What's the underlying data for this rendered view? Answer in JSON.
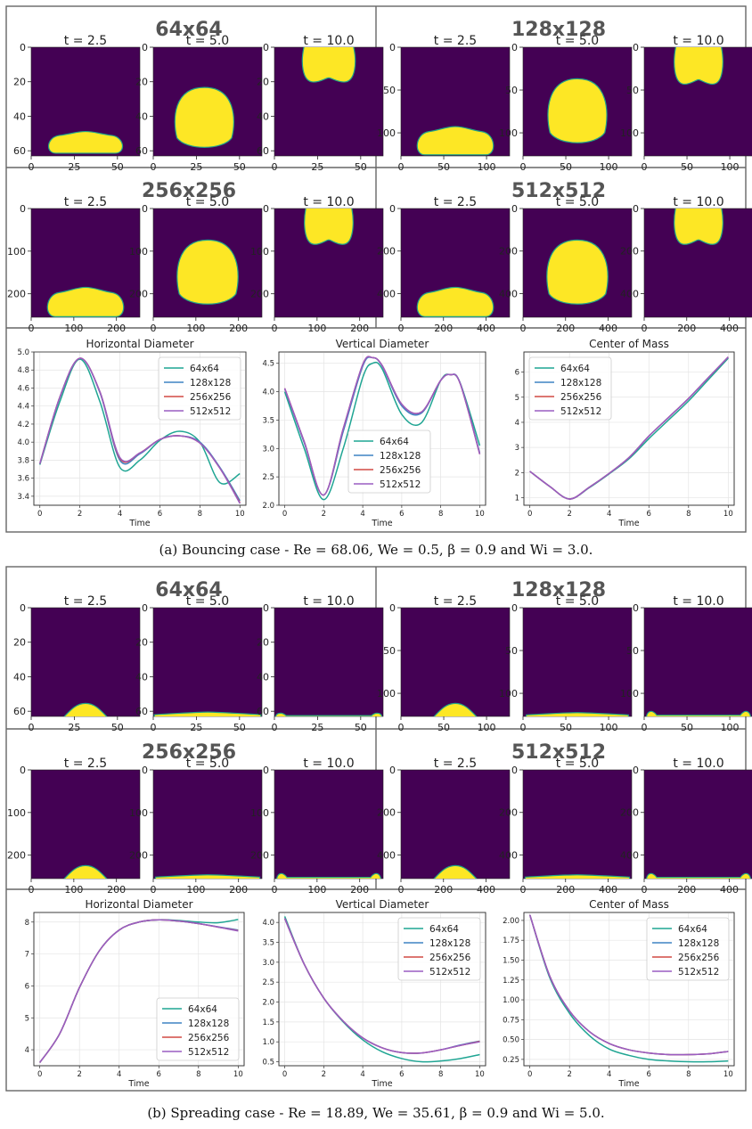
{
  "figure_a": {
    "caption": "(a) Bouncing case - Re = 68.06, We = 0.5, β = 0.9 and Wi = 3.0.",
    "panels": [
      {
        "title": "64x64",
        "max": 63,
        "yticks": [
          0,
          20,
          40,
          60
        ],
        "xticks": [
          0,
          25,
          50
        ],
        "frames": [
          {
            "t_label": "t = 2.5",
            "shape": "puddle",
            "cx": 0.5,
            "cy": 0.875,
            "w": 0.68,
            "h": 0.2
          },
          {
            "t_label": "t = 5.0",
            "shape": "blob",
            "cx": 0.47,
            "cy": 0.66,
            "w": 0.56,
            "h": 0.58
          },
          {
            "t_label": "t = 10.0",
            "shape": "cap",
            "cx": 0.5,
            "cy": 0.16,
            "w": 0.5,
            "h": 0.32
          }
        ]
      },
      {
        "title": "128x128",
        "max": 127,
        "yticks": [
          0,
          50,
          100
        ],
        "xticks": [
          0,
          50,
          100
        ],
        "frames": [
          {
            "t_label": "t = 2.5",
            "shape": "puddle",
            "cx": 0.5,
            "cy": 0.86,
            "w": 0.7,
            "h": 0.26
          },
          {
            "t_label": "t = 5.0",
            "shape": "blob",
            "cx": 0.5,
            "cy": 0.6,
            "w": 0.56,
            "h": 0.62
          },
          {
            "t_label": "t = 10.0",
            "shape": "cap",
            "cx": 0.5,
            "cy": 0.17,
            "w": 0.46,
            "h": 0.34
          }
        ]
      },
      {
        "title": "256x256",
        "max": 255,
        "yticks": [
          0,
          100,
          200
        ],
        "xticks": [
          0,
          100,
          200
        ],
        "frames": [
          {
            "t_label": "t = 2.5",
            "shape": "puddle",
            "cx": 0.5,
            "cy": 0.86,
            "w": 0.7,
            "h": 0.27
          },
          {
            "t_label": "t = 5.0",
            "shape": "blob",
            "cx": 0.5,
            "cy": 0.6,
            "w": 0.58,
            "h": 0.62
          },
          {
            "t_label": "t = 10.0",
            "shape": "cap",
            "cx": 0.5,
            "cy": 0.16,
            "w": 0.46,
            "h": 0.34
          }
        ]
      },
      {
        "title": "512x512",
        "max": 511,
        "yticks": [
          0,
          200,
          400
        ],
        "xticks": [
          0,
          200,
          400
        ],
        "frames": [
          {
            "t_label": "t = 2.5",
            "shape": "puddle",
            "cx": 0.5,
            "cy": 0.86,
            "w": 0.7,
            "h": 0.27
          },
          {
            "t_label": "t = 5.0",
            "shape": "blob",
            "cx": 0.5,
            "cy": 0.6,
            "w": 0.58,
            "h": 0.62
          },
          {
            "t_label": "t = 10.0",
            "shape": "cap",
            "cx": 0.5,
            "cy": 0.16,
            "w": 0.46,
            "h": 0.34
          }
        ]
      }
    ]
  },
  "figure_b": {
    "caption": "(b) Spreading case - Re = 18.89, We = 35.61, β = 0.9 and Wi = 5.0.",
    "panels": [
      {
        "title": "64x64",
        "max": 63,
        "yticks": [
          0,
          20,
          40,
          60
        ],
        "xticks": [
          0,
          25,
          50
        ],
        "frames": [
          {
            "t_label": "t = 2.5",
            "shape": "mound",
            "cx": 0.5,
            "cy": 1.0,
            "w": 0.84,
            "h": 0.24
          },
          {
            "t_label": "t = 5.0",
            "shape": "film",
            "cx": 0.5,
            "cy": 1.0,
            "w": 0.98,
            "h": 0.08
          },
          {
            "t_label": "t = 10.0",
            "shape": "film2",
            "cx": 0.5,
            "cy": 1.0,
            "w": 0.98,
            "h": 0.07
          }
        ]
      },
      {
        "title": "128x128",
        "max": 127,
        "yticks": [
          0,
          50,
          100
        ],
        "xticks": [
          0,
          50,
          100
        ],
        "frames": [
          {
            "t_label": "t = 2.5",
            "shape": "mound",
            "cx": 0.5,
            "cy": 1.0,
            "w": 0.84,
            "h": 0.24
          },
          {
            "t_label": "t = 5.0",
            "shape": "film",
            "cx": 0.5,
            "cy": 1.0,
            "w": 0.94,
            "h": 0.07
          },
          {
            "t_label": "t = 10.0",
            "shape": "film2",
            "cx": 0.5,
            "cy": 1.0,
            "w": 0.96,
            "h": 0.11
          }
        ]
      },
      {
        "title": "256x256",
        "max": 255,
        "yticks": [
          0,
          100,
          200
        ],
        "xticks": [
          0,
          100,
          200
        ],
        "frames": [
          {
            "t_label": "t = 2.5",
            "shape": "mound",
            "cx": 0.5,
            "cy": 1.0,
            "w": 0.84,
            "h": 0.24
          },
          {
            "t_label": "t = 5.0",
            "shape": "film",
            "cx": 0.5,
            "cy": 1.0,
            "w": 0.96,
            "h": 0.07
          },
          {
            "t_label": "t = 10.0",
            "shape": "film2",
            "cx": 0.5,
            "cy": 1.0,
            "w": 0.96,
            "h": 0.11
          }
        ]
      },
      {
        "title": "512x512",
        "max": 511,
        "yticks": [
          0,
          200,
          400
        ],
        "xticks": [
          0,
          200,
          400
        ],
        "frames": [
          {
            "t_label": "t = 2.5",
            "shape": "mound",
            "cx": 0.5,
            "cy": 1.0,
            "w": 0.84,
            "h": 0.24
          },
          {
            "t_label": "t = 5.0",
            "shape": "film",
            "cx": 0.5,
            "cy": 1.0,
            "w": 0.96,
            "h": 0.07
          },
          {
            "t_label": "t = 10.0",
            "shape": "film2",
            "cx": 0.5,
            "cy": 1.0,
            "w": 0.96,
            "h": 0.11
          }
        ]
      }
    ]
  },
  "colors": {
    "background": "#440154",
    "droplet": "#fde725",
    "interface": "#21a387",
    "s64": "#1fa593",
    "s128": "#3e84c4",
    "s256": "#d24a43",
    "s512": "#9a5dc2"
  },
  "chart_data": [
    {
      "type": "line",
      "title": "Horizontal Diameter",
      "xlabel": "Time",
      "ylabel": "",
      "xlim": [
        -0.3,
        10.3
      ],
      "ylim": [
        3.3,
        5.0
      ],
      "xticks": [
        0,
        2,
        4,
        6,
        8,
        10
      ],
      "yticks": [
        3.4,
        3.6,
        3.8,
        4.0,
        4.2,
        4.4,
        4.6,
        4.8,
        5.0
      ],
      "tick_format": 1,
      "legend": "top-right",
      "grid": true,
      "x": [
        0,
        1,
        2,
        3,
        4,
        5,
        6,
        7,
        8,
        9,
        10
      ],
      "series": [
        {
          "name": "64x64",
          "values": [
            3.75,
            4.45,
            4.92,
            4.45,
            3.72,
            3.8,
            4.02,
            4.12,
            4.0,
            3.55,
            3.65
          ]
        },
        {
          "name": "128x128",
          "values": [
            3.76,
            4.5,
            4.93,
            4.55,
            3.8,
            3.87,
            4.03,
            4.07,
            4.0,
            3.72,
            3.35
          ]
        },
        {
          "name": "256x256",
          "values": [
            3.76,
            4.5,
            4.93,
            4.56,
            3.82,
            3.88,
            4.03,
            4.07,
            3.99,
            3.71,
            3.33
          ]
        },
        {
          "name": "512x512",
          "values": [
            3.76,
            4.5,
            4.93,
            4.56,
            3.83,
            3.88,
            4.03,
            4.07,
            3.99,
            3.71,
            3.32
          ]
        }
      ]
    },
    {
      "type": "line",
      "title": "Vertical Diameter",
      "xlabel": "Time",
      "ylabel": "",
      "xlim": [
        -0.3,
        10.3
      ],
      "ylim": [
        2.0,
        4.7
      ],
      "xticks": [
        0,
        2,
        4,
        6,
        8,
        10
      ],
      "yticks": [
        2.0,
        2.5,
        3.0,
        3.5,
        4.0,
        4.5
      ],
      "tick_format": 1,
      "legend": "bottom-center",
      "grid": true,
      "x": [
        0,
        1,
        2,
        3,
        4,
        4.5,
        5,
        6,
        7,
        8,
        8.5,
        9,
        10
      ],
      "series": [
        {
          "name": "64x64",
          "values": [
            4.0,
            3.0,
            2.1,
            3.0,
            4.25,
            4.5,
            4.4,
            3.6,
            3.45,
            4.2,
            4.3,
            4.15,
            3.05
          ]
        },
        {
          "name": "128x128",
          "values": [
            4.05,
            3.1,
            2.18,
            3.3,
            4.45,
            4.6,
            4.45,
            3.75,
            3.62,
            4.2,
            4.3,
            4.15,
            2.92
          ]
        },
        {
          "name": "256x256",
          "values": [
            4.06,
            3.12,
            2.18,
            3.35,
            4.48,
            4.6,
            4.46,
            3.78,
            3.64,
            4.2,
            4.3,
            4.14,
            2.9
          ]
        },
        {
          "name": "512x512",
          "values": [
            4.06,
            3.12,
            2.18,
            3.35,
            4.48,
            4.6,
            4.46,
            3.78,
            3.64,
            4.2,
            4.3,
            4.14,
            2.9
          ]
        }
      ]
    },
    {
      "type": "line",
      "title": "Center of Mass",
      "xlabel": "Time",
      "ylabel": "",
      "xlim": [
        -0.3,
        10.3
      ],
      "ylim": [
        0.7,
        6.8
      ],
      "xticks": [
        0,
        2,
        4,
        6,
        8,
        10
      ],
      "yticks": [
        1,
        2,
        3,
        4,
        5,
        6
      ],
      "tick_format": 0,
      "legend": "top-left",
      "grid": true,
      "x": [
        0,
        1,
        2,
        3,
        4,
        5,
        6,
        7,
        8,
        9,
        10
      ],
      "series": [
        {
          "name": "64x64",
          "values": [
            2.05,
            1.45,
            0.95,
            1.4,
            1.95,
            2.55,
            3.35,
            4.1,
            4.85,
            5.7,
            6.55
          ]
        },
        {
          "name": "128x128",
          "values": [
            2.05,
            1.45,
            0.95,
            1.42,
            1.97,
            2.6,
            3.45,
            4.2,
            4.95,
            5.78,
            6.6
          ]
        },
        {
          "name": "256x256",
          "values": [
            2.05,
            1.45,
            0.95,
            1.42,
            1.97,
            2.6,
            3.45,
            4.2,
            4.95,
            5.78,
            6.6
          ]
        },
        {
          "name": "512x512",
          "values": [
            2.05,
            1.45,
            0.95,
            1.42,
            1.97,
            2.6,
            3.45,
            4.2,
            4.95,
            5.78,
            6.6
          ]
        }
      ]
    },
    {
      "type": "line",
      "title": "Horizontal Diameter",
      "xlabel": "Time",
      "ylabel": "",
      "xlim": [
        -0.3,
        10.3
      ],
      "ylim": [
        3.5,
        8.3
      ],
      "xticks": [
        0,
        2,
        4,
        6,
        8,
        10
      ],
      "yticks": [
        4,
        5,
        6,
        7,
        8
      ],
      "tick_format": 0,
      "legend": "bottom-right",
      "grid": true,
      "x": [
        0,
        1,
        2,
        3,
        4,
        5,
        6,
        7,
        8,
        9,
        10
      ],
      "series": [
        {
          "name": "64x64",
          "values": [
            3.6,
            4.5,
            5.95,
            7.1,
            7.75,
            8.0,
            8.07,
            8.05,
            8.0,
            7.98,
            8.08
          ]
        },
        {
          "name": "128x128",
          "values": [
            3.6,
            4.5,
            5.95,
            7.1,
            7.75,
            8.0,
            8.07,
            8.03,
            7.95,
            7.85,
            7.75
          ]
        },
        {
          "name": "256x256",
          "values": [
            3.6,
            4.5,
            5.95,
            7.1,
            7.75,
            8.0,
            8.07,
            8.03,
            7.95,
            7.84,
            7.73
          ]
        },
        {
          "name": "512x512",
          "values": [
            3.6,
            4.5,
            5.95,
            7.1,
            7.75,
            8.0,
            8.07,
            8.03,
            7.95,
            7.84,
            7.72
          ]
        }
      ]
    },
    {
      "type": "line",
      "title": "Vertical Diameter",
      "xlabel": "Time",
      "ylabel": "",
      "xlim": [
        -0.3,
        10.3
      ],
      "ylim": [
        0.4,
        4.25
      ],
      "xticks": [
        0,
        2,
        4,
        6,
        8,
        10
      ],
      "yticks": [
        0.5,
        1.0,
        1.5,
        2.0,
        2.5,
        3.0,
        3.5,
        4.0
      ],
      "tick_format": 1,
      "legend": "top-right",
      "grid": true,
      "x": [
        0,
        1,
        2,
        3,
        4,
        5,
        6,
        7,
        8,
        9,
        10
      ],
      "series": [
        {
          "name": "64x64",
          "values": [
            4.15,
            2.95,
            2.1,
            1.5,
            1.05,
            0.75,
            0.58,
            0.5,
            0.52,
            0.58,
            0.68
          ]
        },
        {
          "name": "128x128",
          "values": [
            4.1,
            2.95,
            2.1,
            1.52,
            1.1,
            0.85,
            0.73,
            0.72,
            0.8,
            0.92,
            1.02
          ]
        },
        {
          "name": "256x256",
          "values": [
            4.1,
            2.95,
            2.1,
            1.52,
            1.1,
            0.85,
            0.73,
            0.72,
            0.8,
            0.91,
            1.01
          ]
        },
        {
          "name": "512x512",
          "values": [
            4.1,
            2.95,
            2.1,
            1.52,
            1.1,
            0.85,
            0.73,
            0.72,
            0.8,
            0.91,
            1.0
          ]
        }
      ]
    },
    {
      "type": "line",
      "title": "Center of Mass",
      "xlabel": "Time",
      "ylabel": "",
      "xlim": [
        -0.3,
        10.3
      ],
      "ylim": [
        0.17,
        2.1
      ],
      "xticks": [
        0,
        2,
        4,
        6,
        8,
        10
      ],
      "yticks": [
        0.25,
        0.5,
        0.75,
        1.0,
        1.25,
        1.5,
        1.75,
        2.0
      ],
      "tick_format": 2,
      "legend": "top-right",
      "grid": true,
      "x": [
        0,
        1,
        2,
        3,
        4,
        5,
        6,
        7,
        8,
        9,
        10
      ],
      "series": [
        {
          "name": "64x64",
          "values": [
            2.07,
            1.28,
            0.83,
            0.55,
            0.38,
            0.3,
            0.25,
            0.23,
            0.22,
            0.22,
            0.23
          ]
        },
        {
          "name": "128x128",
          "values": [
            2.07,
            1.3,
            0.86,
            0.6,
            0.45,
            0.37,
            0.33,
            0.31,
            0.31,
            0.32,
            0.35
          ]
        },
        {
          "name": "256x256",
          "values": [
            2.07,
            1.3,
            0.86,
            0.6,
            0.45,
            0.37,
            0.33,
            0.31,
            0.31,
            0.32,
            0.35
          ]
        },
        {
          "name": "512x512",
          "values": [
            2.07,
            1.3,
            0.86,
            0.6,
            0.45,
            0.37,
            0.33,
            0.31,
            0.31,
            0.32,
            0.35
          ]
        }
      ]
    }
  ]
}
